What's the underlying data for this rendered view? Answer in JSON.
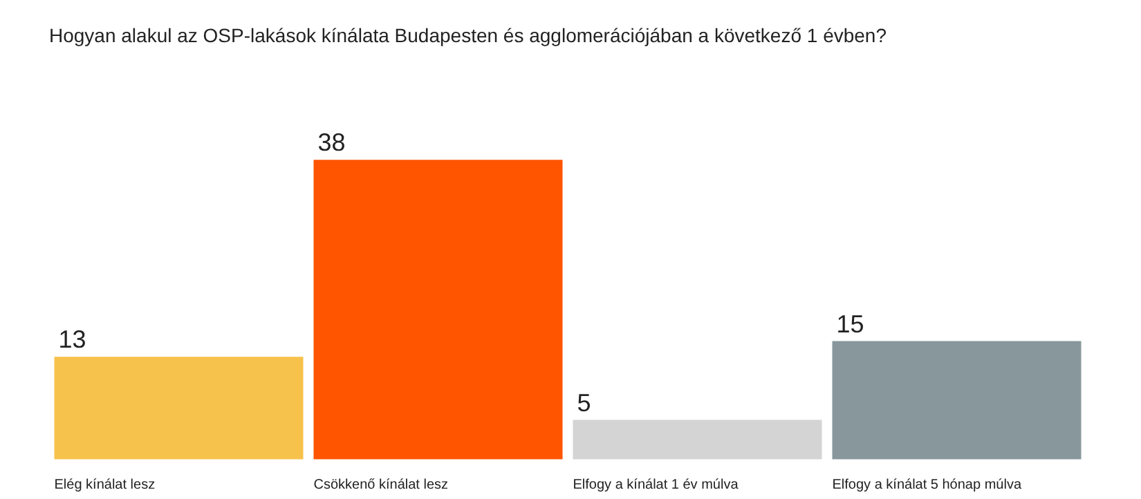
{
  "chart_data": {
    "type": "bar",
    "title": "Hogyan alakul az OSP-lakások kínálata Budapesten és agglomerációjában a következő 1 évben?",
    "categories": [
      "Elég kínálat lesz",
      "Csökkenő kínálat lesz",
      "Elfogy a kínálat 1 év múlva",
      "Elfogy a kínálat 5 hónap múlva"
    ],
    "values": [
      13,
      38,
      5,
      15
    ],
    "colors": [
      "#f7c24b",
      "#ff5500",
      "#d4d4d4",
      "#87979c"
    ],
    "data_labels": true
  }
}
